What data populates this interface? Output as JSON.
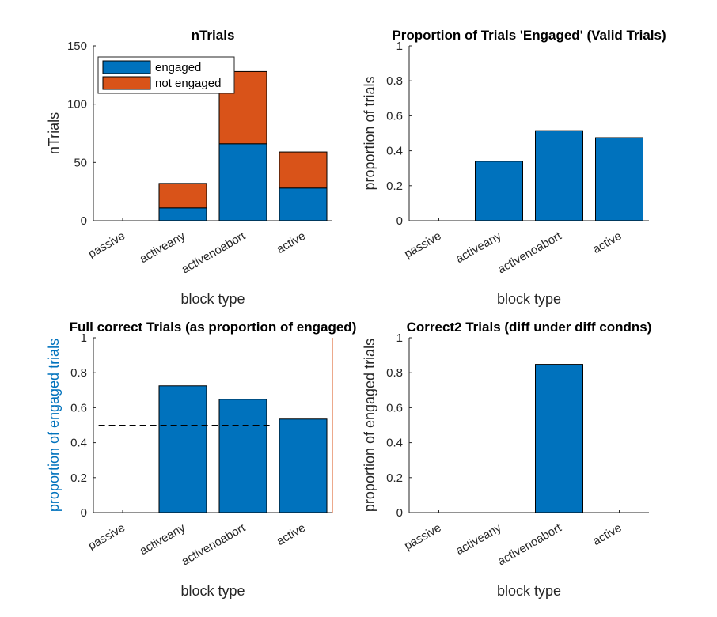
{
  "chart_data": [
    {
      "type": "bar",
      "stacked": true,
      "title": "nTrials",
      "xlabel": "block type",
      "ylabel": "nTrials",
      "categories": [
        "passive",
        "activeany",
        "activenoabort",
        "active"
      ],
      "series": [
        {
          "name": "engaged",
          "values": [
            0,
            11,
            66,
            28
          ],
          "color": "#0072BD"
        },
        {
          "name": "not engaged",
          "values": [
            0,
            21,
            62,
            31
          ],
          "color": "#D95319"
        }
      ],
      "ylim": [
        0,
        150
      ],
      "yticks": [
        0,
        50,
        100,
        150
      ],
      "legend": "top-left"
    },
    {
      "type": "bar",
      "title": "Proportion of Trials 'Engaged' (Valid Trials)",
      "xlabel": "block type",
      "ylabel": "proportion of trials",
      "categories": [
        "passive",
        "activeany",
        "activenoabort",
        "active"
      ],
      "values": [
        0,
        0.34,
        0.515,
        0.475
      ],
      "color": "#0072BD",
      "ylim": [
        0,
        1
      ],
      "yticks": [
        0,
        0.2,
        0.4,
        0.6,
        0.8,
        1
      ]
    },
    {
      "type": "bar",
      "title": "Full correct Trials (as proportion of engaged)",
      "xlabel": "block type",
      "ylabel": "proportion of engaged trials",
      "categories": [
        "passive",
        "activeany",
        "activenoabort",
        "active"
      ],
      "values": [
        0,
        0.725,
        0.648,
        0.535
      ],
      "color": "#0072BD",
      "ylim": [
        0,
        1
      ],
      "yticks": [
        0,
        0.2,
        0.4,
        0.6,
        0.8,
        1
      ],
      "reference_line": {
        "y": 0.5,
        "x_from": 0.6,
        "x_to": 3.45,
        "style": "dashed"
      },
      "ylabel_color": "#0072BD",
      "right_axis_color": "#D95319"
    },
    {
      "type": "bar",
      "title": "Correct2 Trials (diff under diff condns)",
      "xlabel": "block type",
      "ylabel": "proportion of engaged trials",
      "categories": [
        "passive",
        "activeany",
        "activenoabort",
        "active"
      ],
      "values": [
        0,
        0,
        0.848,
        0
      ],
      "color": "#0072BD",
      "ylim": [
        0,
        1
      ],
      "yticks": [
        0,
        0.2,
        0.4,
        0.6,
        0.8,
        1
      ]
    }
  ]
}
